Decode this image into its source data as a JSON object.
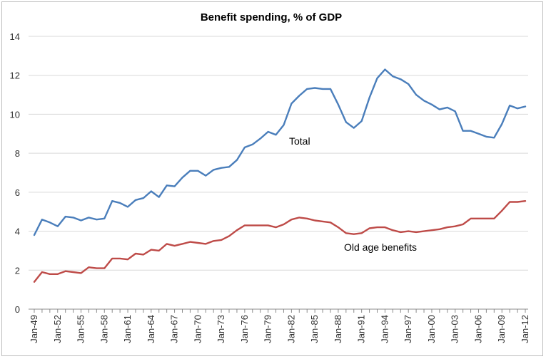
{
  "chart_data": {
    "type": "line",
    "title": "Benefit spending, % of GDP",
    "xlabel": "",
    "ylabel": "",
    "ylim": [
      0,
      14
    ],
    "yticks": [
      0,
      2,
      4,
      6,
      8,
      10,
      12,
      14
    ],
    "x_start_year": 1949,
    "x_end_year": 2012,
    "xtick_labels": [
      "Jan-49",
      "Jan-52",
      "Jan-55",
      "Jan-58",
      "Jan-61",
      "Jan-64",
      "Jan-67",
      "Jan-70",
      "Jan-73",
      "Jan-76",
      "Jan-79",
      "Jan-82",
      "Jan-85",
      "Jan-88",
      "Jan-91",
      "Jan-94",
      "Jan-97",
      "Jan-00",
      "Jan-03",
      "Jan-06",
      "Jan-09",
      "Jan-12"
    ],
    "grid": "horizontal",
    "legend": "none",
    "annotations": [
      {
        "text": "Total",
        "series": "Total"
      },
      {
        "text": "Old age benefits",
        "series": "Old age benefits"
      }
    ],
    "series": [
      {
        "name": "Total",
        "color": "#4a7ebb",
        "values": [
          3.8,
          4.6,
          4.45,
          4.25,
          4.75,
          4.7,
          4.55,
          4.7,
          4.6,
          4.65,
          5.55,
          5.45,
          5.25,
          5.6,
          5.7,
          6.05,
          5.75,
          6.35,
          6.3,
          6.75,
          7.1,
          7.1,
          6.85,
          7.15,
          7.25,
          7.3,
          7.65,
          8.3,
          8.45,
          8.75,
          9.1,
          8.95,
          9.45,
          10.55,
          10.95,
          11.3,
          11.35,
          11.3,
          11.3,
          10.5,
          9.6,
          9.3,
          9.65,
          10.85,
          11.85,
          12.3,
          11.95,
          11.8,
          11.55,
          11.0,
          10.7,
          10.5,
          10.25,
          10.35,
          10.15,
          9.15,
          9.15,
          9.0,
          8.85,
          8.8,
          9.5,
          10.45,
          10.3,
          10.4
        ]
      },
      {
        "name": "Old age benefits",
        "color": "#be4b48",
        "values": [
          1.4,
          1.9,
          1.8,
          1.8,
          1.95,
          1.9,
          1.85,
          2.15,
          2.1,
          2.1,
          2.6,
          2.6,
          2.55,
          2.85,
          2.8,
          3.05,
          3.0,
          3.35,
          3.25,
          3.35,
          3.45,
          3.4,
          3.35,
          3.5,
          3.55,
          3.75,
          4.05,
          4.3,
          4.3,
          4.3,
          4.3,
          4.2,
          4.35,
          4.6,
          4.7,
          4.65,
          4.55,
          4.5,
          4.45,
          4.2,
          3.9,
          3.85,
          3.9,
          4.15,
          4.2,
          4.2,
          4.05,
          3.95,
          4.0,
          3.95,
          4.0,
          4.05,
          4.1,
          4.2,
          4.25,
          4.35,
          4.65,
          4.65,
          4.65,
          4.65,
          5.05,
          5.5,
          5.5,
          5.55
        ]
      }
    ]
  }
}
